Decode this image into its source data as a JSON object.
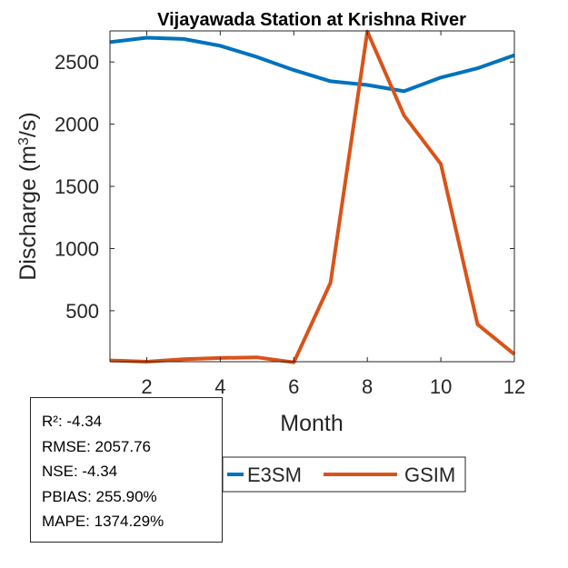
{
  "chart_data": {
    "type": "line",
    "title": "Vijayawada  Station at  Krishna  River",
    "xlabel": "Month",
    "ylabel": "Discharge (m³/s)",
    "xlim": [
      1,
      12
    ],
    "ylim": [
      90,
      2750
    ],
    "xticks": [
      2,
      4,
      6,
      8,
      10,
      12
    ],
    "yticks": [
      500,
      1000,
      1500,
      2000,
      2500
    ],
    "grid": false,
    "legend_position": "bottom",
    "x": [
      1,
      2,
      3,
      4,
      5,
      6,
      7,
      8,
      9,
      10,
      11,
      12
    ],
    "series": [
      {
        "name": "E3SM",
        "color": "#0072BD",
        "values": [
          2660,
          2695,
          2685,
          2630,
          2540,
          2435,
          2345,
          2315,
          2265,
          2375,
          2450,
          2555
        ]
      },
      {
        "name": "GSIM",
        "color": "#D95319",
        "values": [
          100,
          90,
          110,
          120,
          125,
          85,
          725,
          2745,
          2070,
          1680,
          390,
          150
        ]
      }
    ]
  },
  "stats": [
    "R²: -4.34",
    "RMSE: 2057.76",
    "NSE: -4.34",
    "PBIAS: 255.90%",
    "MAPE: 1374.29%"
  ]
}
